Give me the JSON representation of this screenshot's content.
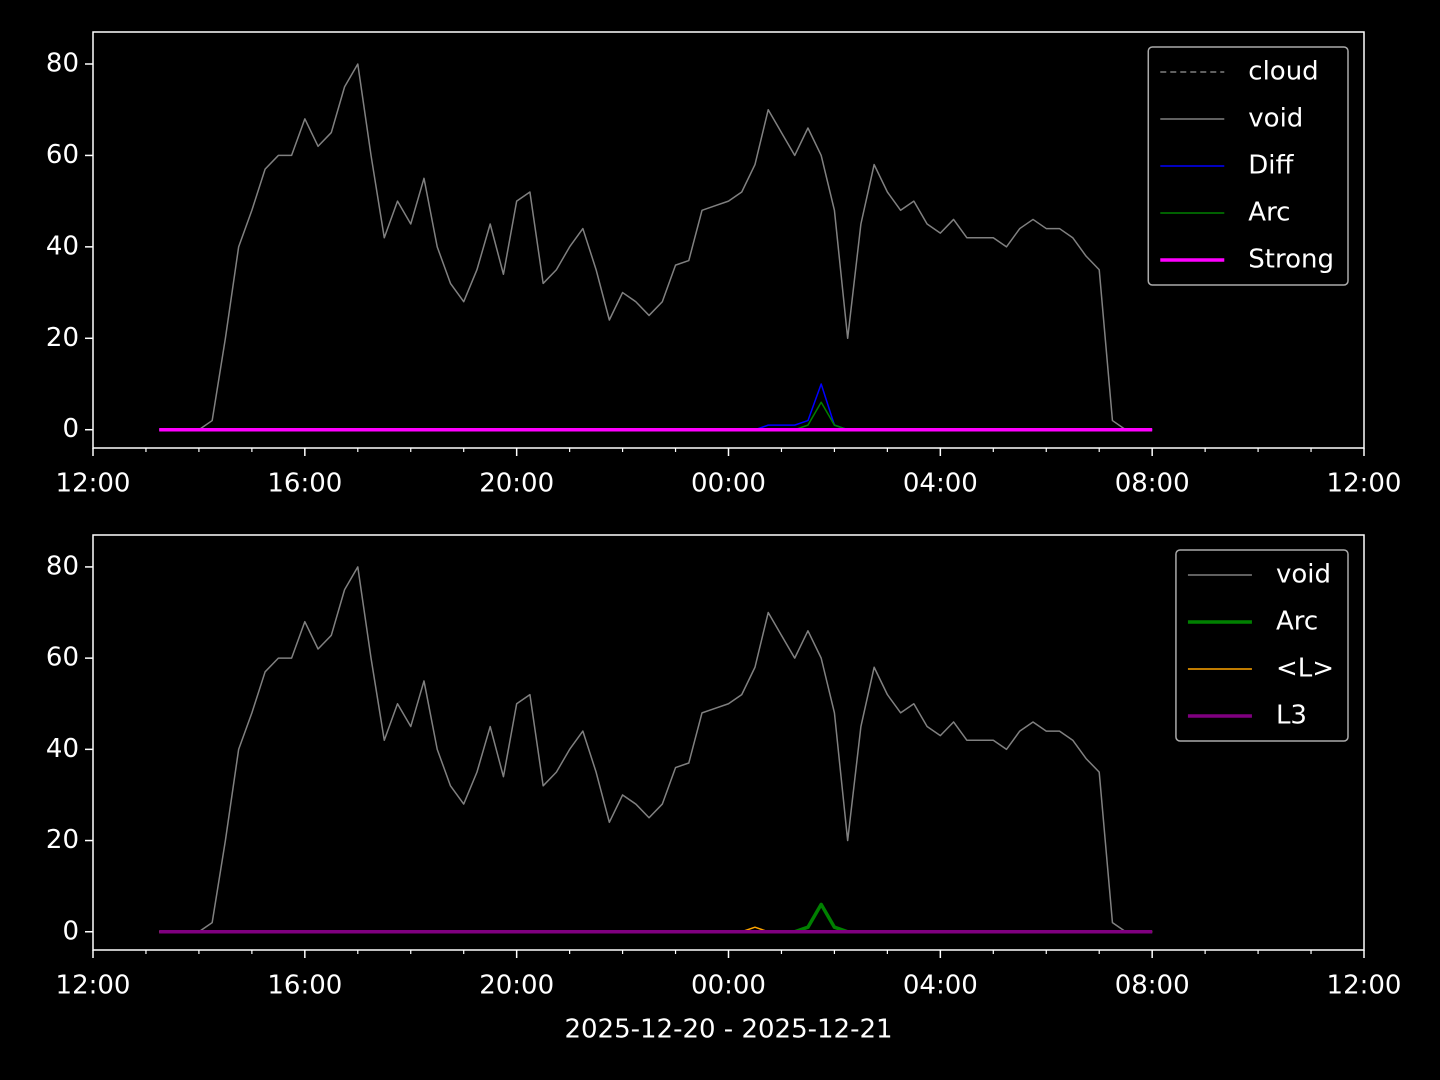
{
  "chart_data": [
    {
      "type": "line",
      "x": [
        13.25,
        13.5,
        13.75,
        14,
        14.25,
        14.5,
        14.75,
        15,
        15.25,
        15.5,
        15.75,
        16,
        16.25,
        16.5,
        16.75,
        17,
        17.25,
        17.5,
        17.75,
        18,
        18.25,
        18.5,
        18.75,
        19,
        19.25,
        19.5,
        19.75,
        20,
        20.25,
        20.5,
        20.75,
        21,
        21.25,
        21.5,
        21.75,
        22,
        22.25,
        22.5,
        22.75,
        23,
        23.25,
        23.5,
        23.75,
        24,
        24.25,
        24.5,
        24.75,
        25,
        25.25,
        25.5,
        25.75,
        26,
        26.25,
        26.5,
        26.75,
        27,
        27.25,
        27.5,
        27.75,
        28,
        28.25,
        28.5,
        28.75,
        29,
        29.25,
        29.5,
        29.75,
        30,
        30.25,
        30.5,
        30.75,
        31,
        31.25,
        31.5,
        31.75,
        32
      ],
      "xlim": [
        12,
        36
      ],
      "xticks": [
        {
          "value": 12,
          "label": "12:00"
        },
        {
          "value": 16,
          "label": "16:00"
        },
        {
          "value": 20,
          "label": "20:00"
        },
        {
          "value": 24,
          "label": "00:00"
        },
        {
          "value": 28,
          "label": "04:00"
        },
        {
          "value": 32,
          "label": "08:00"
        },
        {
          "value": 36,
          "label": "12:00"
        }
      ],
      "xminorticks": [
        13,
        14,
        15,
        17,
        18,
        19,
        21,
        22,
        23,
        25,
        26,
        27,
        29,
        30,
        31,
        33,
        34,
        35
      ],
      "ylim": [
        -4,
        87
      ],
      "yticks": [
        0,
        20,
        40,
        60,
        80
      ],
      "legend": "upper right",
      "series": [
        {
          "name": "cloud",
          "color": "#808080",
          "linestyle": "dashed",
          "linewidth": 1.5,
          "values": [
            0,
            0,
            0,
            0,
            0,
            0,
            0,
            0,
            0,
            0,
            0,
            0,
            0,
            0,
            0,
            0,
            0,
            0,
            0,
            0,
            0,
            0,
            0,
            0,
            0,
            0,
            0,
            0,
            0,
            0,
            0,
            0,
            0,
            0,
            0,
            0,
            0,
            0,
            0,
            0,
            0,
            0,
            0,
            0,
            0,
            0,
            0,
            0,
            0,
            0,
            0,
            0,
            0,
            0,
            0,
            0,
            0,
            0,
            0,
            0,
            0,
            0,
            0,
            0,
            0,
            0,
            0,
            0,
            0,
            0,
            0,
            0,
            0,
            0,
            0,
            0
          ]
        },
        {
          "name": "void",
          "color": "#808080",
          "linestyle": "solid",
          "linewidth": 1.5,
          "values": [
            0,
            0,
            0,
            0,
            2,
            20,
            40,
            48,
            57,
            60,
            60,
            68,
            62,
            65,
            75,
            80,
            60,
            42,
            50,
            45,
            55,
            40,
            32,
            28,
            35,
            45,
            34,
            50,
            52,
            32,
            35,
            40,
            44,
            35,
            24,
            30,
            28,
            25,
            28,
            36,
            37,
            48,
            49,
            50,
            52,
            58,
            70,
            65,
            60,
            66,
            60,
            48,
            20,
            45,
            58,
            52,
            48,
            50,
            45,
            43,
            46,
            42,
            42,
            42,
            40,
            44,
            46,
            44,
            44,
            42,
            38,
            35,
            2,
            0,
            0,
            0
          ]
        },
        {
          "name": "Diff",
          "color": "#0000ff",
          "linestyle": "solid",
          "linewidth": 1.5,
          "values": [
            0,
            0,
            0,
            0,
            0,
            0,
            0,
            0,
            0,
            0,
            0,
            0,
            0,
            0,
            0,
            0,
            0,
            0,
            0,
            0,
            0,
            0,
            0,
            0,
            0,
            0,
            0,
            0,
            0,
            0,
            0,
            0,
            0,
            0,
            0,
            0,
            0,
            0,
            0,
            0,
            0,
            0,
            0,
            0,
            0,
            0,
            1,
            1,
            1,
            2,
            10,
            1,
            0,
            0,
            0,
            0,
            0,
            0,
            0,
            0,
            0,
            0,
            0,
            0,
            0,
            0,
            0,
            0,
            0,
            0,
            0,
            0,
            0,
            0,
            0,
            0
          ]
        },
        {
          "name": "Arc",
          "color": "#008000",
          "linestyle": "solid",
          "linewidth": 1.5,
          "values": [
            0,
            0,
            0,
            0,
            0,
            0,
            0,
            0,
            0,
            0,
            0,
            0,
            0,
            0,
            0,
            0,
            0,
            0,
            0,
            0,
            0,
            0,
            0,
            0,
            0,
            0,
            0,
            0,
            0,
            0,
            0,
            0,
            0,
            0,
            0,
            0,
            0,
            0,
            0,
            0,
            0,
            0,
            0,
            0,
            0,
            0,
            0,
            0,
            0,
            1,
            6,
            1,
            0,
            0,
            0,
            0,
            0,
            0,
            0,
            0,
            0,
            0,
            0,
            0,
            0,
            0,
            0,
            0,
            0,
            0,
            0,
            0,
            0,
            0,
            0,
            0
          ]
        },
        {
          "name": "Strong",
          "color": "#ff00ff",
          "linestyle": "solid",
          "linewidth": 3.5,
          "values": [
            0,
            0,
            0,
            0,
            0,
            0,
            0,
            0,
            0,
            0,
            0,
            0,
            0,
            0,
            0,
            0,
            0,
            0,
            0,
            0,
            0,
            0,
            0,
            0,
            0,
            0,
            0,
            0,
            0,
            0,
            0,
            0,
            0,
            0,
            0,
            0,
            0,
            0,
            0,
            0,
            0,
            0,
            0,
            0,
            0,
            0,
            0,
            0,
            0,
            0,
            0,
            0,
            0,
            0,
            0,
            0,
            0,
            0,
            0,
            0,
            0,
            0,
            0,
            0,
            0,
            0,
            0,
            0,
            0,
            0,
            0,
            0,
            0,
            0,
            0,
            0
          ]
        }
      ]
    },
    {
      "type": "line",
      "x": [
        13.25,
        13.5,
        13.75,
        14,
        14.25,
        14.5,
        14.75,
        15,
        15.25,
        15.5,
        15.75,
        16,
        16.25,
        16.5,
        16.75,
        17,
        17.25,
        17.5,
        17.75,
        18,
        18.25,
        18.5,
        18.75,
        19,
        19.25,
        19.5,
        19.75,
        20,
        20.25,
        20.5,
        20.75,
        21,
        21.25,
        21.5,
        21.75,
        22,
        22.25,
        22.5,
        22.75,
        23,
        23.25,
        23.5,
        23.75,
        24,
        24.25,
        24.5,
        24.75,
        25,
        25.25,
        25.5,
        25.75,
        26,
        26.25,
        26.5,
        26.75,
        27,
        27.25,
        27.5,
        27.75,
        28,
        28.25,
        28.5,
        28.75,
        29,
        29.25,
        29.5,
        29.75,
        30,
        30.25,
        30.5,
        30.75,
        31,
        31.25,
        31.5,
        31.75,
        32
      ],
      "xlim": [
        12,
        36
      ],
      "xticks": [
        {
          "value": 12,
          "label": "12:00"
        },
        {
          "value": 16,
          "label": "16:00"
        },
        {
          "value": 20,
          "label": "20:00"
        },
        {
          "value": 24,
          "label": "00:00"
        },
        {
          "value": 28,
          "label": "04:00"
        },
        {
          "value": 32,
          "label": "08:00"
        },
        {
          "value": 36,
          "label": "12:00"
        }
      ],
      "xminorticks": [
        13,
        14,
        15,
        17,
        18,
        19,
        21,
        22,
        23,
        25,
        26,
        27,
        29,
        30,
        31,
        33,
        34,
        35
      ],
      "xlabel": "2025-12-20 - 2025-12-21",
      "ylim": [
        -4,
        87
      ],
      "yticks": [
        0,
        20,
        40,
        60,
        80
      ],
      "legend": "upper right",
      "series": [
        {
          "name": "void",
          "color": "#808080",
          "linestyle": "solid",
          "linewidth": 1.5,
          "values": [
            0,
            0,
            0,
            0,
            2,
            20,
            40,
            48,
            57,
            60,
            60,
            68,
            62,
            65,
            75,
            80,
            60,
            42,
            50,
            45,
            55,
            40,
            32,
            28,
            35,
            45,
            34,
            50,
            52,
            32,
            35,
            40,
            44,
            35,
            24,
            30,
            28,
            25,
            28,
            36,
            37,
            48,
            49,
            50,
            52,
            58,
            70,
            65,
            60,
            66,
            60,
            48,
            20,
            45,
            58,
            52,
            48,
            50,
            45,
            43,
            46,
            42,
            42,
            42,
            40,
            44,
            46,
            44,
            44,
            42,
            38,
            35,
            2,
            0,
            0,
            0
          ]
        },
        {
          "name": "Arc",
          "color": "#008000",
          "linestyle": "solid",
          "linewidth": 3.5,
          "values": [
            0,
            0,
            0,
            0,
            0,
            0,
            0,
            0,
            0,
            0,
            0,
            0,
            0,
            0,
            0,
            0,
            0,
            0,
            0,
            0,
            0,
            0,
            0,
            0,
            0,
            0,
            0,
            0,
            0,
            0,
            0,
            0,
            0,
            0,
            0,
            0,
            0,
            0,
            0,
            0,
            0,
            0,
            0,
            0,
            0,
            0,
            0,
            0,
            0,
            1,
            6,
            1,
            0,
            0,
            0,
            0,
            0,
            0,
            0,
            0,
            0,
            0,
            0,
            0,
            0,
            0,
            0,
            0,
            0,
            0,
            0,
            0,
            0,
            0,
            0,
            0
          ]
        },
        {
          "name": "<L>",
          "color": "#ffa500",
          "linestyle": "solid",
          "linewidth": 1.5,
          "values": [
            0,
            0,
            0,
            0,
            0,
            0,
            0,
            0,
            0,
            0,
            0,
            0,
            0,
            0,
            0,
            0,
            0,
            0,
            0,
            0,
            0,
            0,
            0,
            0,
            0,
            0,
            0,
            0,
            0,
            0,
            0,
            0,
            0,
            0,
            0,
            0,
            0,
            0,
            0,
            0,
            0,
            0,
            0,
            0,
            0,
            1,
            0,
            0,
            0,
            0,
            0,
            0,
            0,
            0,
            0,
            0,
            0,
            0,
            0,
            0,
            0,
            0,
            0,
            0,
            0,
            0,
            0,
            0,
            0,
            0,
            0,
            0,
            0,
            0,
            0,
            0
          ]
        },
        {
          "name": "L3",
          "color": "#800080",
          "linestyle": "solid",
          "linewidth": 3.5,
          "values": [
            0,
            0,
            0,
            0,
            0,
            0,
            0,
            0,
            0,
            0,
            0,
            0,
            0,
            0,
            0,
            0,
            0,
            0,
            0,
            0,
            0,
            0,
            0,
            0,
            0,
            0,
            0,
            0,
            0,
            0,
            0,
            0,
            0,
            0,
            0,
            0,
            0,
            0,
            0,
            0,
            0,
            0,
            0,
            0,
            0,
            0,
            0,
            0,
            0,
            0,
            0,
            0,
            0,
            0,
            0,
            0,
            0,
            0,
            0,
            0,
            0,
            0,
            0,
            0,
            0,
            0,
            0,
            0,
            0,
            0,
            0,
            0,
            0,
            0,
            0,
            0
          ]
        }
      ]
    }
  ]
}
